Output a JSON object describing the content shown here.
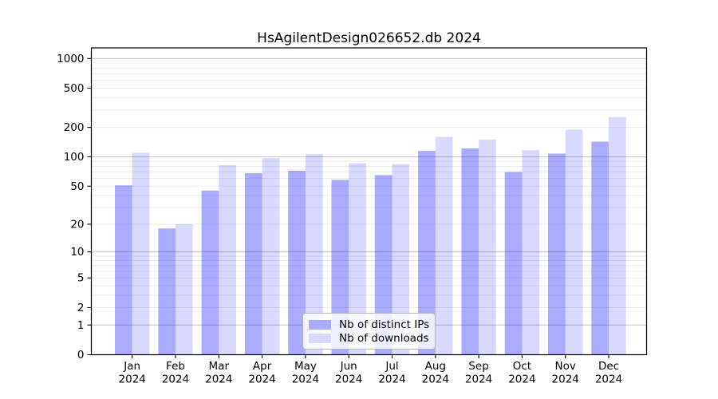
{
  "title": "HsAgilentDesign026652.db 2024",
  "chart_data": {
    "type": "bar",
    "title": "HsAgilentDesign026652.db 2024",
    "categories": [
      "Jan 2024",
      "Feb 2024",
      "Mar 2024",
      "Apr 2024",
      "May 2024",
      "Jun 2024",
      "Jul 2024",
      "Aug 2024",
      "Sep 2024",
      "Oct 2024",
      "Nov 2024",
      "Dec 2024"
    ],
    "series": [
      {
        "name": "Nb of distinct IPs",
        "color": "#aaaaff",
        "fill_rgba": "rgba(0,0,255,0.333)",
        "values": [
          51,
          18,
          45,
          68,
          72,
          58,
          65,
          115,
          122,
          70,
          108,
          143
        ]
      },
      {
        "name": "Nb of downloads",
        "color": "#d9d9ff",
        "fill_rgba": "rgba(0,0,255,0.15)",
        "values": [
          110,
          20,
          82,
          97,
          107,
          86,
          84,
          160,
          150,
          117,
          190,
          255
        ]
      }
    ],
    "xlabel": "",
    "ylabel": "",
    "yscale": "log1p",
    "ylim": [
      0,
      1280
    ],
    "yticks": [
      0,
      1,
      2,
      5,
      10,
      20,
      50,
      100,
      200,
      500,
      1000
    ],
    "ytick_labels": [
      "0",
      "1",
      "2",
      "5",
      "10",
      "20",
      "50",
      "100",
      "200",
      "500",
      "1000"
    ],
    "grid": true,
    "legend_position": "lower center",
    "colors": {
      "major_grid": "#c8c8c8",
      "minor_grid": "#ececec",
      "axis": "#000000",
      "tick_text": "#000000",
      "title_text": "#000000"
    }
  }
}
